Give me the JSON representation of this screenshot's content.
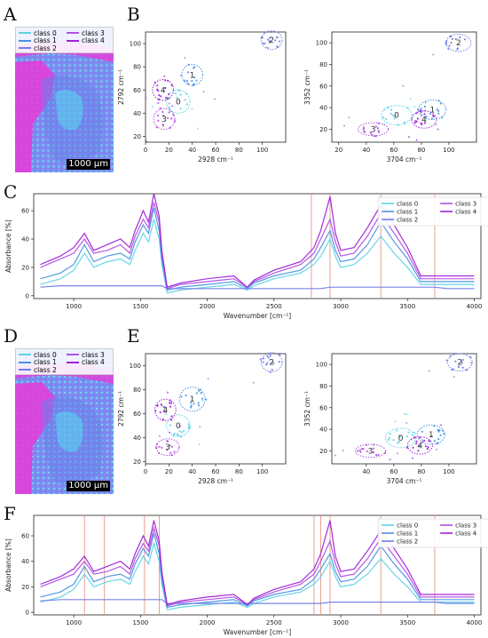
{
  "panel_labels": {
    "a": "A",
    "b": "B",
    "c": "C",
    "d": "D",
    "e": "E",
    "f": "F"
  },
  "scale_bar": "1000 µm",
  "classes": [
    "class 0",
    "class 1",
    "class 2",
    "class 3",
    "class 4"
  ],
  "colors": {
    "class 0": "#5fd3e6",
    "class 1": "#4a93e0",
    "class 2": "#6f7ee6",
    "class 3": "#b24fe0",
    "class 4": "#a020d8",
    "marker_line": "#e08a7a"
  },
  "scatter_axis_labels": {
    "b_left": {
      "x": "2928 cm⁻¹",
      "y": "2792 cm⁻¹"
    },
    "b_right": {
      "x": "3704 cm⁻¹",
      "y": "3352 cm⁻¹"
    },
    "e_left": {
      "x": "2928 cm⁻¹",
      "y": "2792 cm⁻¹"
    },
    "e_right": {
      "x": "3704 cm⁻¹",
      "y": "3352 cm⁻¹"
    }
  },
  "spectrum_axis_labels": {
    "x": "Wavenumber [cm⁻¹]",
    "y": "Absorbance [%]"
  },
  "chart_data": [
    {
      "id": "B-left",
      "type": "scatter",
      "xlabel": "2928 cm⁻¹",
      "ylabel": "2792 cm⁻¹",
      "xlim": [
        0,
        120
      ],
      "ylim": [
        15,
        110
      ],
      "xticks": [
        0,
        20,
        40,
        60,
        80,
        100
      ],
      "yticks": [
        20,
        40,
        60,
        80,
        100
      ],
      "clusters": [
        {
          "label": "0",
          "class": "class 0",
          "cx": 28,
          "cy": 50,
          "rx": 10,
          "ry": 10
        },
        {
          "label": "1",
          "class": "class 1",
          "cx": 40,
          "cy": 73,
          "rx": 9,
          "ry": 9
        },
        {
          "label": "2",
          "class": "class 2",
          "cx": 108,
          "cy": 103,
          "rx": 9,
          "ry": 8
        },
        {
          "label": "3",
          "class": "class 3",
          "cx": 16,
          "cy": 35,
          "rx": 9,
          "ry": 9
        },
        {
          "label": "4",
          "class": "class 4",
          "cx": 15,
          "cy": 60,
          "rx": 9,
          "ry": 9
        }
      ]
    },
    {
      "id": "B-right",
      "type": "scatter",
      "xlabel": "3704 cm⁻¹",
      "ylabel": "3352 cm⁻¹",
      "xlim": [
        15,
        120
      ],
      "ylim": [
        8,
        110
      ],
      "xticks": [
        20,
        40,
        60,
        80,
        100
      ],
      "yticks": [
        20,
        40,
        60,
        80,
        100
      ],
      "clusters": [
        {
          "label": "0",
          "class": "class 0",
          "cx": 62,
          "cy": 33,
          "rx": 11,
          "ry": 9
        },
        {
          "label": "1",
          "class": "class 1",
          "cx": 88,
          "cy": 38,
          "rx": 10,
          "ry": 9
        },
        {
          "label": "2",
          "class": "class 2",
          "cx": 107,
          "cy": 100,
          "rx": 9,
          "ry": 8
        },
        {
          "label": "3",
          "class": "class 3",
          "cx": 45,
          "cy": 20,
          "rx": 11,
          "ry": 6
        },
        {
          "label": "4",
          "class": "class 4",
          "cx": 82,
          "cy": 29,
          "rx": 9,
          "ry": 8
        }
      ]
    },
    {
      "id": "E-left",
      "type": "scatter",
      "xlabel": "2928 cm⁻¹",
      "ylabel": "2792 cm⁻¹",
      "xlim": [
        0,
        120
      ],
      "ylim": [
        18,
        110
      ],
      "xticks": [
        0,
        20,
        40,
        60,
        80,
        100
      ],
      "yticks": [
        20,
        40,
        60,
        80,
        100
      ],
      "clusters": [
        {
          "label": "0",
          "class": "class 0",
          "cx": 28,
          "cy": 50,
          "rx": 10,
          "ry": 9
        },
        {
          "label": "1",
          "class": "class 1",
          "cx": 40,
          "cy": 72,
          "rx": 11,
          "ry": 10
        },
        {
          "label": "2",
          "class": "class 2",
          "cx": 108,
          "cy": 103,
          "rx": 9,
          "ry": 8
        },
        {
          "label": "3",
          "class": "class 3",
          "cx": 19,
          "cy": 32,
          "rx": 10,
          "ry": 7
        },
        {
          "label": "4",
          "class": "class 4",
          "cx": 17,
          "cy": 63,
          "rx": 9,
          "ry": 9
        }
      ]
    },
    {
      "id": "E-right",
      "type": "scatter",
      "xlabel": "3704 cm⁻¹",
      "ylabel": "3352 cm⁻¹",
      "xlim": [
        15,
        120
      ],
      "ylim": [
        8,
        110
      ],
      "xticks": [
        40,
        60,
        80,
        100
      ],
      "yticks": [
        20,
        40,
        60,
        80,
        100
      ],
      "clusters": [
        {
          "label": "0",
          "class": "class 0",
          "cx": 65,
          "cy": 32,
          "rx": 11,
          "ry": 9
        },
        {
          "label": "1",
          "class": "class 1",
          "cx": 87,
          "cy": 35,
          "rx": 10,
          "ry": 9
        },
        {
          "label": "2",
          "class": "class 2",
          "cx": 108,
          "cy": 102,
          "rx": 9,
          "ry": 8
        },
        {
          "label": "3",
          "class": "class 3",
          "cx": 43,
          "cy": 20,
          "rx": 11,
          "ry": 6
        },
        {
          "label": "4",
          "class": "class 4",
          "cx": 79,
          "cy": 25,
          "rx": 9,
          "ry": 8
        }
      ]
    },
    {
      "id": "C",
      "type": "line",
      "xlabel": "Wavenumber [cm⁻¹]",
      "ylabel": "Absorbance [%]",
      "xlim": [
        700,
        4050
      ],
      "ylim": [
        -2,
        72
      ],
      "xticks": [
        1000,
        1500,
        2000,
        2500,
        3000,
        3500,
        4000
      ],
      "yticks": [
        0,
        20,
        40,
        60
      ],
      "vlines": [
        2780,
        2920,
        3300,
        3704
      ],
      "x": [
        750,
        900,
        1000,
        1080,
        1150,
        1250,
        1350,
        1420,
        1460,
        1520,
        1560,
        1600,
        1640,
        1660,
        1700,
        1800,
        2000,
        2200,
        2300,
        2350,
        2500,
        2700,
        2800,
        2850,
        2920,
        2960,
        3000,
        3100,
        3200,
        3300,
        3400,
        3500,
        3600,
        3700,
        3800,
        4000
      ],
      "series": [
        {
          "name": "class 0",
          "values": [
            8,
            12,
            18,
            30,
            20,
            24,
            26,
            22,
            32,
            44,
            38,
            54,
            40,
            22,
            2,
            4,
            6,
            8,
            4,
            7,
            12,
            16,
            22,
            28,
            40,
            28,
            20,
            22,
            30,
            42,
            30,
            20,
            8,
            8,
            8,
            8
          ]
        },
        {
          "name": "class 1",
          "values": [
            12,
            16,
            22,
            36,
            24,
            28,
            30,
            26,
            38,
            50,
            44,
            62,
            46,
            26,
            4,
            6,
            8,
            10,
            5,
            9,
            14,
            18,
            26,
            34,
            46,
            32,
            24,
            26,
            36,
            52,
            38,
            26,
            10,
            10,
            10,
            10
          ]
        },
        {
          "name": "class 2",
          "values": [
            6,
            7,
            7,
            7,
            7,
            7,
            7,
            7,
            7,
            7,
            7,
            7,
            7,
            7,
            5,
            5,
            5,
            5,
            5,
            5,
            5,
            5,
            5,
            5,
            6,
            6,
            6,
            6,
            6,
            6,
            6,
            6,
            6,
            6,
            5,
            5
          ]
        },
        {
          "name": "class 3",
          "values": [
            20,
            26,
            30,
            40,
            30,
            32,
            36,
            30,
            42,
            54,
            48,
            66,
            52,
            30,
            5,
            8,
            10,
            12,
            6,
            10,
            16,
            22,
            30,
            40,
            54,
            38,
            28,
            30,
            42,
            58,
            44,
            30,
            12,
            12,
            12,
            12
          ]
        },
        {
          "name": "class 4",
          "values": [
            22,
            28,
            34,
            44,
            32,
            36,
            40,
            34,
            46,
            60,
            52,
            72,
            56,
            32,
            6,
            9,
            12,
            14,
            6,
            11,
            18,
            24,
            34,
            46,
            70,
            44,
            32,
            34,
            48,
            64,
            50,
            34,
            14,
            14,
            14,
            14
          ]
        }
      ]
    },
    {
      "id": "F",
      "type": "line",
      "xlabel": "Wavenumber [cm⁻¹]",
      "ylabel": "Absorbance [%]",
      "xlim": [
        700,
        4050
      ],
      "ylim": [
        -2,
        76
      ],
      "xticks": [
        1000,
        1500,
        2000,
        2500,
        3000,
        3500,
        4000
      ],
      "yticks": [
        0,
        20,
        40,
        60
      ],
      "vlines": [
        1080,
        1230,
        1530,
        1640,
        2800,
        2850,
        2920,
        3300,
        3704
      ],
      "x": [
        750,
        900,
        1000,
        1080,
        1150,
        1250,
        1350,
        1420,
        1460,
        1520,
        1560,
        1600,
        1640,
        1660,
        1700,
        1800,
        2000,
        2200,
        2300,
        2350,
        2500,
        2700,
        2800,
        2850,
        2920,
        2960,
        3000,
        3100,
        3200,
        3300,
        3400,
        3500,
        3600,
        3700,
        3800,
        4000
      ],
      "series": [
        {
          "name": "class 0",
          "values": [
            8,
            12,
            18,
            30,
            20,
            24,
            26,
            22,
            32,
            44,
            38,
            54,
            40,
            22,
            2,
            4,
            6,
            8,
            4,
            7,
            12,
            16,
            22,
            28,
            40,
            28,
            20,
            22,
            30,
            42,
            30,
            20,
            8,
            8,
            8,
            8
          ]
        },
        {
          "name": "class 1",
          "values": [
            12,
            16,
            22,
            36,
            24,
            28,
            30,
            26,
            38,
            50,
            44,
            62,
            46,
            26,
            4,
            6,
            8,
            10,
            5,
            9,
            14,
            18,
            26,
            34,
            46,
            32,
            24,
            26,
            36,
            52,
            38,
            26,
            10,
            10,
            10,
            10
          ]
        },
        {
          "name": "class 2",
          "values": [
            9,
            10,
            10,
            10,
            10,
            10,
            10,
            10,
            10,
            10,
            10,
            10,
            10,
            10,
            7,
            7,
            7,
            7,
            7,
            7,
            7,
            7,
            7,
            7,
            8,
            8,
            8,
            8,
            8,
            8,
            8,
            8,
            8,
            8,
            7,
            7
          ]
        },
        {
          "name": "class 3",
          "values": [
            20,
            26,
            30,
            40,
            30,
            32,
            36,
            30,
            42,
            54,
            48,
            66,
            52,
            30,
            5,
            8,
            10,
            12,
            6,
            10,
            16,
            22,
            30,
            40,
            56,
            38,
            28,
            30,
            42,
            58,
            44,
            30,
            12,
            12,
            12,
            12
          ]
        },
        {
          "name": "class 4",
          "values": [
            22,
            28,
            34,
            44,
            32,
            36,
            40,
            34,
            46,
            60,
            52,
            72,
            56,
            32,
            6,
            9,
            12,
            14,
            6,
            11,
            18,
            24,
            34,
            46,
            72,
            44,
            32,
            34,
            48,
            64,
            50,
            34,
            14,
            14,
            14,
            14
          ]
        }
      ]
    }
  ]
}
